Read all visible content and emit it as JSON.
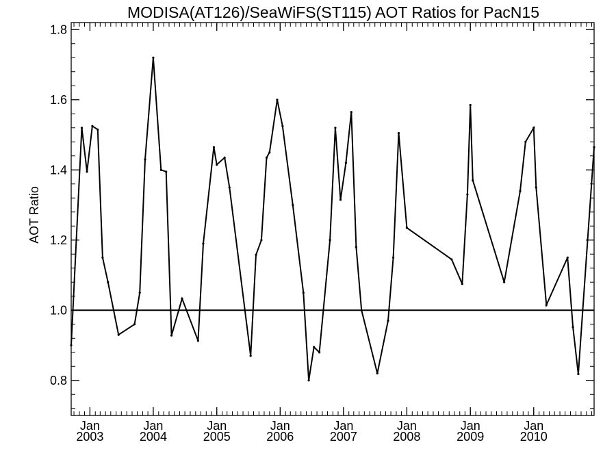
{
  "chart_data": {
    "type": "line",
    "title": "MODISA(AT126)/SeaWiFS(ST115)  AOT Ratios for PacN15",
    "xlabel": "",
    "ylabel": "AOT Ratio",
    "xlim": [
      "2002-09-15",
      "2010-12-15"
    ],
    "ylim": [
      0.7,
      1.82
    ],
    "yticks": [
      0.8,
      1.0,
      1.2,
      1.4,
      1.6,
      1.8
    ],
    "ytick_labels": [
      "0.8",
      "1.0",
      "1.2",
      "1.4",
      "1.6",
      "1.8"
    ],
    "xticks": [
      {
        "date": "2003-01-01",
        "month": "Jan",
        "year": "2003"
      },
      {
        "date": "2004-01-01",
        "month": "Jan",
        "year": "2004"
      },
      {
        "date": "2005-01-01",
        "month": "Jan",
        "year": "2005"
      },
      {
        "date": "2006-01-01",
        "month": "Jan",
        "year": "2006"
      },
      {
        "date": "2007-01-01",
        "month": "Jan",
        "year": "2007"
      },
      {
        "date": "2008-01-01",
        "month": "Jan",
        "year": "2008"
      },
      {
        "date": "2009-01-01",
        "month": "Jan",
        "year": "2009"
      },
      {
        "date": "2010-01-01",
        "month": "Jan",
        "year": "2010"
      }
    ],
    "reference_line": {
      "y": 1.0
    },
    "grid": false,
    "series": [
      {
        "x": [
          "2002-09-15",
          "2002-11-15",
          "2002-12-15",
          "2003-01-15",
          "2003-02-15",
          "2003-03-15",
          "2003-04-15",
          "2003-06-15",
          "2003-09-15",
          "2003-10-15",
          "2003-11-15",
          "2004-01-01",
          "2004-02-15",
          "2004-03-15",
          "2004-04-15",
          "2004-06-15",
          "2004-09-15",
          "2004-10-15",
          "2004-12-15",
          "2005-01-01",
          "2005-02-15",
          "2005-03-15",
          "2005-07-15",
          "2005-08-15",
          "2005-09-15",
          "2005-10-15",
          "2005-11-01",
          "2005-12-15",
          "2006-01-15",
          "2006-03-15",
          "2006-05-15",
          "2006-06-15",
          "2006-07-15",
          "2006-08-15",
          "2006-10-15",
          "2006-11-15",
          "2006-12-15",
          "2007-01-15",
          "2007-02-15",
          "2007-03-15",
          "2007-04-15",
          "2007-07-15",
          "2007-09-15",
          "2007-10-15",
          "2007-11-15",
          "2008-01-01",
          "2008-09-15",
          "2008-11-15",
          "2008-12-15",
          "2009-01-01",
          "2009-01-15",
          "2009-07-15",
          "2009-10-15",
          "2009-11-15",
          "2010-01-01",
          "2010-01-15",
          "2010-03-15",
          "2010-07-15",
          "2010-08-15",
          "2010-09-15",
          "2010-12-15"
        ],
        "values": [
          0.9,
          1.52,
          1.395,
          1.525,
          1.515,
          1.15,
          1.08,
          0.93,
          0.96,
          1.05,
          1.43,
          1.72,
          1.4,
          1.395,
          0.928,
          1.033,
          0.913,
          1.19,
          1.465,
          1.415,
          1.435,
          1.35,
          0.87,
          1.158,
          1.2,
          1.435,
          1.45,
          1.6,
          1.525,
          1.3,
          1.05,
          0.8,
          0.895,
          0.88,
          1.2,
          1.52,
          1.315,
          1.42,
          1.565,
          1.18,
          1.0,
          0.82,
          0.97,
          1.15,
          1.505,
          1.235,
          1.145,
          1.075,
          1.33,
          1.585,
          1.37,
          1.08,
          1.34,
          1.48,
          1.52,
          1.35,
          1.015,
          1.15,
          0.952,
          0.818,
          1.465
        ]
      }
    ]
  }
}
